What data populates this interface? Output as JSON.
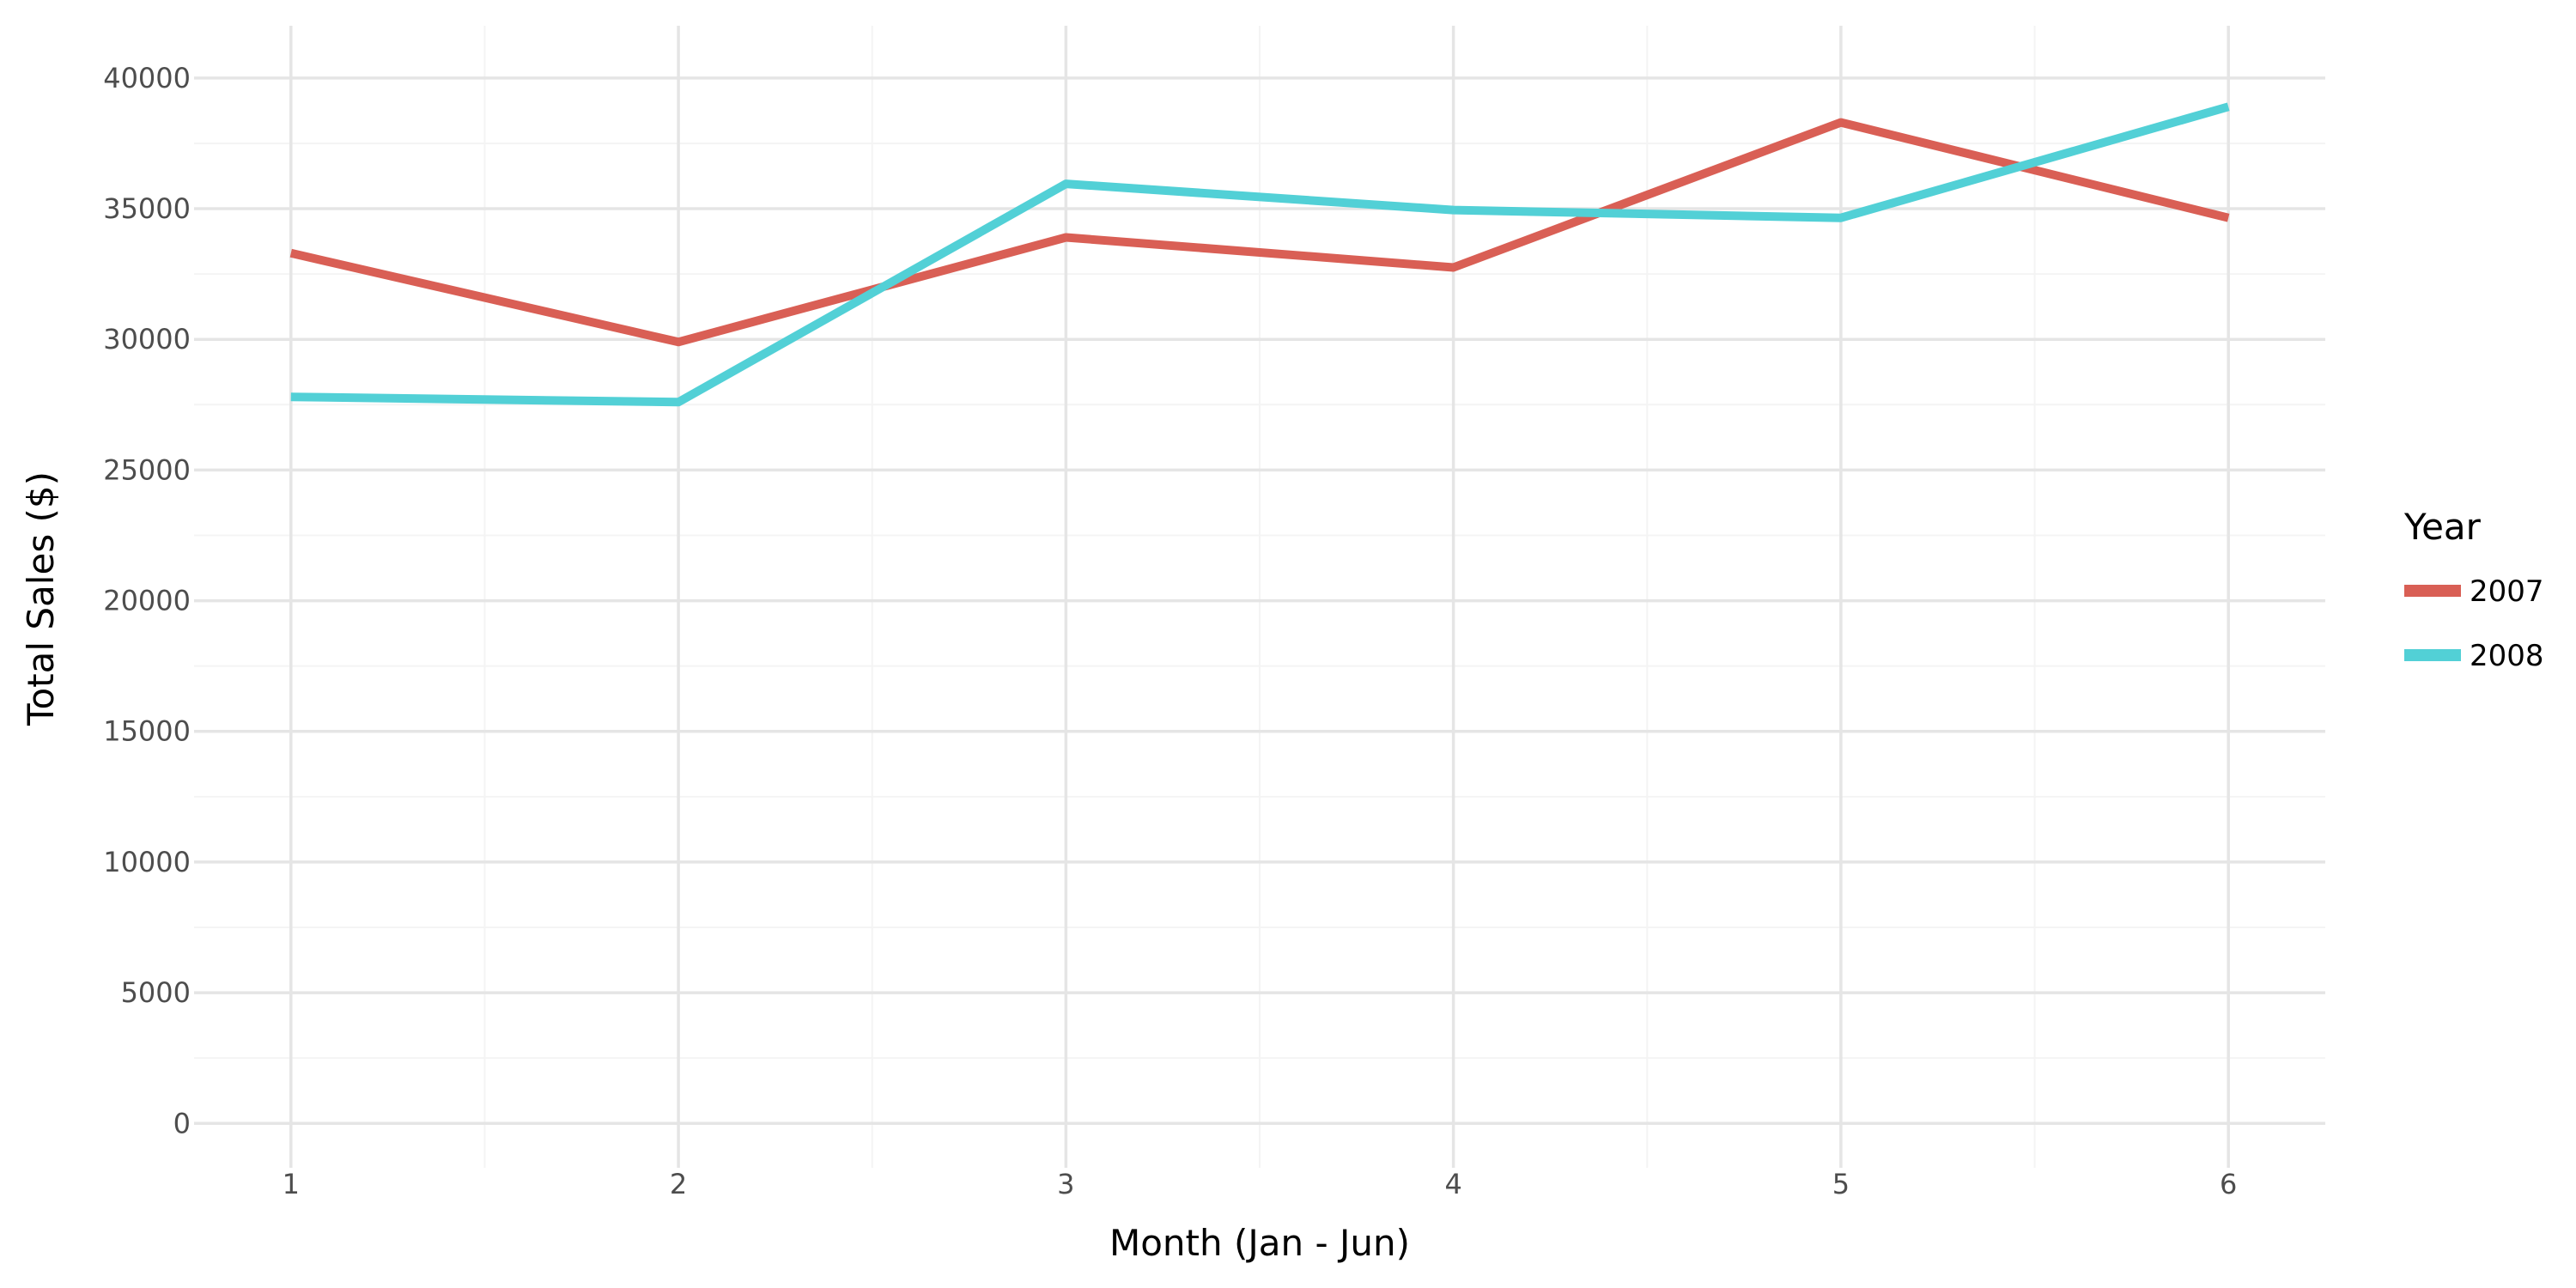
{
  "chart_data": {
    "type": "line",
    "x": [
      1,
      2,
      3,
      4,
      5,
      6
    ],
    "series": [
      {
        "name": "2007",
        "color": "#d95f55",
        "values": [
          33300,
          29900,
          33900,
          32750,
          38300,
          34650
        ]
      },
      {
        "name": "2008",
        "color": "#52d0d6",
        "values": [
          27800,
          27600,
          35950,
          34950,
          34650,
          38900
        ]
      }
    ],
    "xlabel": "Month (Jan - Jun)",
    "ylabel": "Total Sales ($)",
    "xlim": [
      0.75,
      6.25
    ],
    "ylim": [
      -1700,
      42000
    ],
    "x_ticks": [
      1,
      2,
      3,
      4,
      5,
      6
    ],
    "y_ticks": [
      0,
      5000,
      10000,
      15000,
      20000,
      25000,
      30000,
      35000,
      40000
    ],
    "grid": true,
    "legend": {
      "title": "Year",
      "position": "right"
    }
  }
}
